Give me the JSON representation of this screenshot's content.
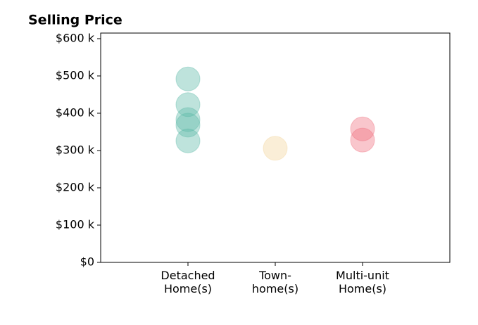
{
  "chart_data": {
    "type": "strip",
    "title": "Selling Price",
    "categories": [
      "Detached\nHome(s)",
      "Town-\nhome(s)",
      "Multi-unit\nHome(s)"
    ],
    "values": [
      [
        492000,
        423000,
        383000,
        368000,
        326000
      ],
      [
        306000
      ],
      [
        358000,
        328000
      ]
    ],
    "colors": [
      "#5cb8a8",
      "#f2d49b",
      "#f07080"
    ],
    "opacity": 0.4,
    "xlim": [
      -1,
      3
    ],
    "ylim": [
      0,
      615000
    ],
    "yticks": [
      {
        "value": 0,
        "label": "$0"
      },
      {
        "value": 100000,
        "label": "$100 k"
      },
      {
        "value": 200000,
        "label": "$200 k"
      },
      {
        "value": 300000,
        "label": "$300 k"
      },
      {
        "value": 400000,
        "label": "$400 k"
      },
      {
        "value": 500000,
        "label": "$500 k"
      },
      {
        "value": 600000,
        "label": "$600 k"
      }
    ]
  }
}
